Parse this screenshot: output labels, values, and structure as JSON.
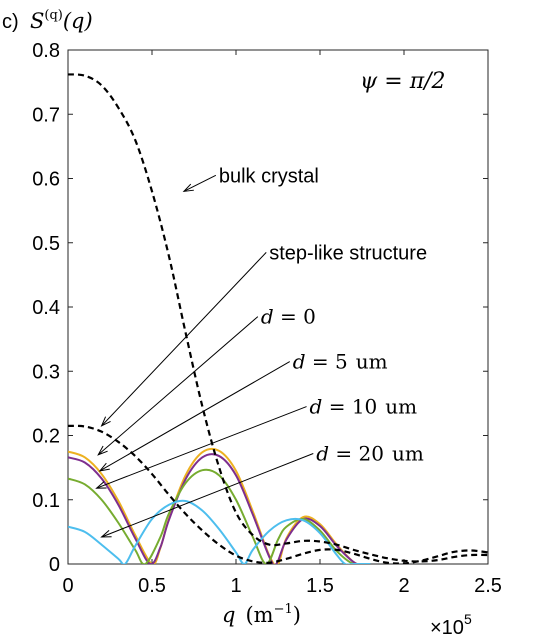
{
  "chart_data": {
    "type": "line",
    "panel_label": "c)",
    "ylabel_main": "S",
    "ylabel_sup": "(q)",
    "ylabel_arg": "(q)",
    "xlabel_main": "q",
    "xlabel_unit": "(m",
    "xlabel_exp": "−1",
    "xlabel_close": ")",
    "x_multiplier_prefix": "×10",
    "x_multiplier_exp": "5",
    "xlim": [
      0,
      2.5
    ],
    "ylim": [
      0,
      0.8
    ],
    "xticks": [
      0,
      0.5,
      1,
      1.5,
      2,
      2.5
    ],
    "xtick_labels": [
      "0",
      "0.5",
      "1",
      "1.5",
      "2",
      "2.5"
    ],
    "yticks": [
      0,
      0.1,
      0.2,
      0.3,
      0.4,
      0.5,
      0.6,
      0.7,
      0.8
    ],
    "ytick_labels": [
      "0",
      "0.1",
      "0.2",
      "0.3",
      "0.4",
      "0.5",
      "0.6",
      "0.7",
      "0.8"
    ],
    "grid": false,
    "inset_text": {
      "lhs": "ψ",
      "eq": " = ",
      "rhs": "π/2"
    },
    "series": [
      {
        "name": "bulk crystal",
        "color": "#000000",
        "dashed": true,
        "x": [
          0,
          0.1,
          0.2,
          0.3,
          0.4,
          0.5,
          0.6,
          0.7,
          0.8,
          0.9,
          1.0,
          1.1,
          1.2,
          1.3,
          1.4,
          1.5,
          1.6,
          1.7,
          1.8,
          1.9,
          2.0,
          2.1,
          2.2,
          2.3,
          2.4,
          2.5
        ],
        "y": [
          0.762,
          0.76,
          0.745,
          0.71,
          0.66,
          0.58,
          0.48,
          0.36,
          0.245,
          0.15,
          0.08,
          0.045,
          0.03,
          0.032,
          0.036,
          0.035,
          0.03,
          0.022,
          0.015,
          0.009,
          0.005,
          0.004,
          0.006,
          0.011,
          0.014,
          0.014
        ]
      },
      {
        "name": "step-like structure",
        "color": "#000000",
        "dashed": true,
        "x": [
          0,
          0.1,
          0.2,
          0.3,
          0.4,
          0.5,
          0.6,
          0.7,
          0.8,
          0.9,
          1.0,
          1.1,
          1.2,
          1.3,
          1.4,
          1.5,
          1.6,
          1.7,
          1.8,
          1.9,
          2.0,
          2.1,
          2.2,
          2.3,
          2.4,
          2.5
        ],
        "y": [
          0.215,
          0.214,
          0.206,
          0.19,
          0.168,
          0.14,
          0.108,
          0.078,
          0.052,
          0.03,
          0.013,
          0.004,
          0.002,
          0.008,
          0.016,
          0.022,
          0.022,
          0.016,
          0.008,
          0.002,
          0.001,
          0.005,
          0.012,
          0.019,
          0.021,
          0.018
        ]
      },
      {
        "name": "d = 0",
        "color": "#edb120",
        "dashed": false,
        "x": [
          0,
          0.1,
          0.2,
          0.3,
          0.4,
          0.5,
          0.55,
          0.6,
          0.7,
          0.8,
          0.9,
          1.0,
          1.1,
          1.2,
          1.25,
          1.3,
          1.4,
          1.5,
          1.6,
          1.7,
          1.75,
          1.8
        ],
        "y": [
          0.175,
          0.166,
          0.14,
          0.098,
          0.045,
          0.0,
          0.025,
          0.07,
          0.138,
          0.174,
          0.176,
          0.145,
          0.082,
          0.012,
          0.0,
          0.04,
          0.073,
          0.062,
          0.03,
          0.003,
          0.0,
          0.0
        ]
      },
      {
        "name": "d = 5 um",
        "color": "#7e2f8e",
        "dashed": false,
        "x": [
          0,
          0.1,
          0.2,
          0.3,
          0.4,
          0.49,
          0.55,
          0.6,
          0.7,
          0.8,
          0.9,
          1.0,
          1.1,
          1.2,
          1.24,
          1.3,
          1.4,
          1.5,
          1.6,
          1.7,
          1.74,
          1.8
        ],
        "y": [
          0.166,
          0.158,
          0.133,
          0.092,
          0.04,
          0.0,
          0.026,
          0.068,
          0.132,
          0.166,
          0.168,
          0.138,
          0.077,
          0.01,
          0.0,
          0.038,
          0.07,
          0.059,
          0.028,
          0.003,
          0.0,
          0.0
        ]
      },
      {
        "name": "d = 10 um",
        "color": "#77ac30",
        "dashed": false,
        "x": [
          0,
          0.1,
          0.2,
          0.3,
          0.4,
          0.46,
          0.55,
          0.6,
          0.7,
          0.8,
          0.9,
          1.0,
          1.1,
          1.18,
          1.25,
          1.3,
          1.4,
          1.5,
          1.6,
          1.7,
          1.8
        ],
        "y": [
          0.133,
          0.124,
          0.1,
          0.064,
          0.022,
          0.0,
          0.042,
          0.078,
          0.126,
          0.146,
          0.138,
          0.1,
          0.042,
          0.0,
          0.038,
          0.058,
          0.07,
          0.052,
          0.02,
          0.0,
          0.0
        ]
      },
      {
        "name": "d = 20 um",
        "color": "#4dbeee",
        "dashed": false,
        "x": [
          0,
          0.1,
          0.2,
          0.3,
          0.34,
          0.4,
          0.5,
          0.6,
          0.7,
          0.8,
          0.9,
          1.0,
          1.05,
          1.1,
          1.2,
          1.3,
          1.4,
          1.5,
          1.6,
          1.65,
          1.7,
          1.8
        ],
        "y": [
          0.058,
          0.05,
          0.03,
          0.008,
          0.0,
          0.028,
          0.07,
          0.092,
          0.098,
          0.083,
          0.054,
          0.018,
          0.0,
          0.022,
          0.052,
          0.068,
          0.068,
          0.048,
          0.014,
          0.0,
          0.0,
          0.0
        ]
      }
    ],
    "annotations": [
      {
        "id": "bulk",
        "text": "bulk crystal",
        "style": "sans",
        "tip": [
          0.69,
          0.58
        ],
        "tail": [
          0.88,
          0.605
        ]
      },
      {
        "id": "step",
        "text": "step-like structure",
        "style": "sans",
        "tip": [
          0.2,
          0.215
        ],
        "tail": [
          1.18,
          0.485
        ]
      },
      {
        "id": "d0",
        "lhs": "d",
        "rhs": "0",
        "unit": "",
        "style": "math",
        "tip": [
          0.18,
          0.17
        ],
        "tail": [
          1.13,
          0.385
        ]
      },
      {
        "id": "d5",
        "lhs": "d",
        "rhs": "5",
        "unit": "um",
        "style": "math",
        "tip": [
          0.19,
          0.145
        ],
        "tail": [
          1.32,
          0.315
        ]
      },
      {
        "id": "d10",
        "lhs": "d",
        "rhs": "10",
        "unit": "um",
        "style": "math",
        "tip": [
          0.17,
          0.118
        ],
        "tail": [
          1.42,
          0.245
        ]
      },
      {
        "id": "d20",
        "lhs": "d",
        "rhs": "20",
        "unit": "um",
        "style": "math",
        "tip": [
          0.2,
          0.042
        ],
        "tail": [
          1.46,
          0.172
        ]
      }
    ]
  }
}
